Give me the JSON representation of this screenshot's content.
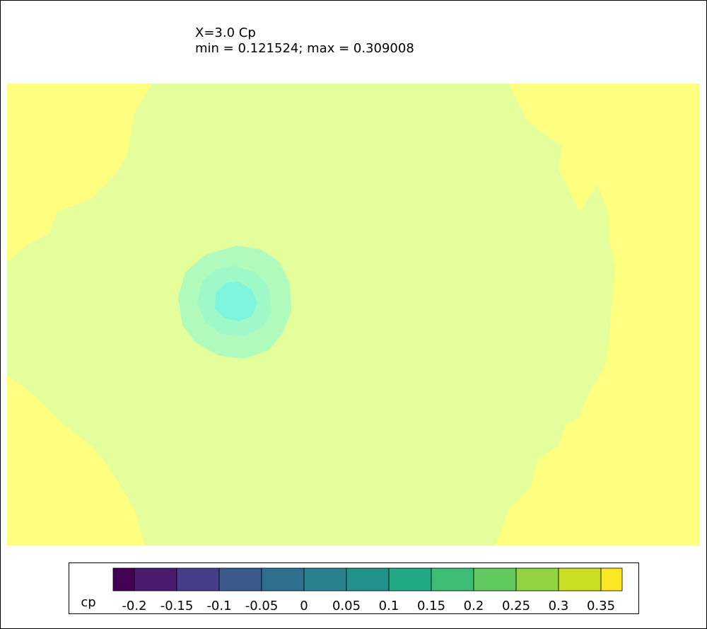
{
  "chart_data": {
    "type": "contour",
    "title": "X=3.0 Cp",
    "subtitle": "min = 0.121524; max = 0.309008",
    "colorbar_label": "cp",
    "clim": [
      -0.225,
      0.375
    ],
    "ticks": [
      -0.2,
      -0.15,
      -0.1,
      -0.05,
      0,
      0.05,
      0.1,
      0.15,
      0.2,
      0.25,
      0.3,
      0.35
    ],
    "colors": [
      "#440154",
      "#4a1a6e",
      "#463d86",
      "#3b5a8c",
      "#2f6f8e",
      "#2a818e",
      "#21918c",
      "#22a884",
      "#3cbc75",
      "#62c95f",
      "#91d342",
      "#c9de22",
      "#fde725"
    ]
  }
}
